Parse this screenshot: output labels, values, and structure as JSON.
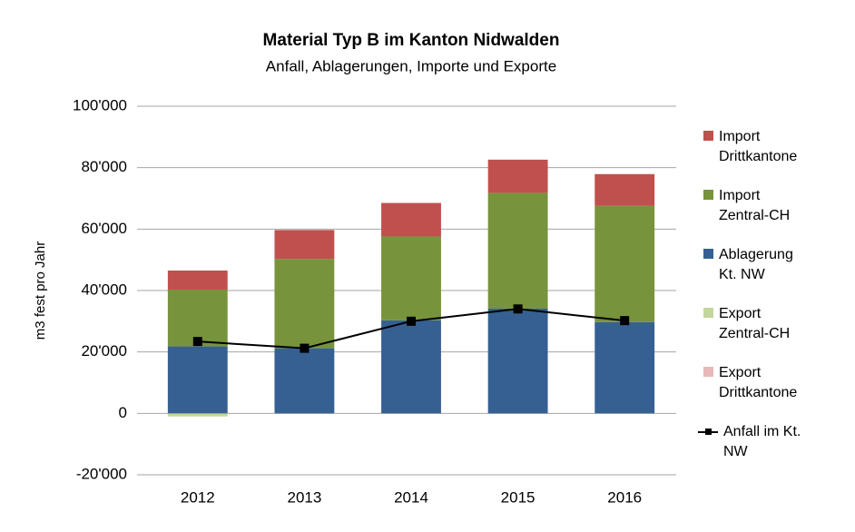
{
  "chart_data": {
    "type": "bar",
    "title": "Material Typ B im Kanton Nidwalden",
    "subtitle": "Anfall, Ablagerungen, Importe und Exporte",
    "y_label": "m3 fest pro Jahr",
    "categories": [
      "2012",
      "2013",
      "2014",
      "2015",
      "2016"
    ],
    "series": [
      {
        "name": "Import Drittkantone",
        "color": "#c0504d",
        "values": [
          6200,
          9400,
          10900,
          10800,
          10300
        ]
      },
      {
        "name": "Import Zentral-CH",
        "color": "#77933c",
        "values": [
          18500,
          29100,
          27300,
          37700,
          37900
        ]
      },
      {
        "name": "Ablagerung Kt. NW",
        "color": "#376092",
        "values": [
          21800,
          21200,
          30300,
          34100,
          29700
        ]
      },
      {
        "name": "Export Zentral-CH",
        "color": "#c3d69b",
        "values": [
          -1000,
          0,
          0,
          0,
          0
        ]
      },
      {
        "name": "Export Drittkantone",
        "color": "#e6b9b8",
        "values": [
          0,
          0,
          0,
          0,
          0
        ]
      },
      {
        "name": "Anfall im Kt. NW",
        "color": "#000000",
        "type": "line",
        "values": [
          23400,
          21200,
          30000,
          34000,
          30200
        ]
      }
    ],
    "ylim": [
      -20000,
      100000
    ],
    "yticks": [
      {
        "value": -20000,
        "label": "-20'000"
      },
      0,
      {
        "value": 20000,
        "label": "20'000"
      },
      {
        "value": 40000,
        "label": "40'000"
      },
      {
        "value": 60000,
        "label": "60'000"
      },
      {
        "value": 80000,
        "label": "80'000"
      },
      {
        "value": 100000,
        "label": "100'000"
      }
    ],
    "grid": true,
    "legend": "right"
  }
}
